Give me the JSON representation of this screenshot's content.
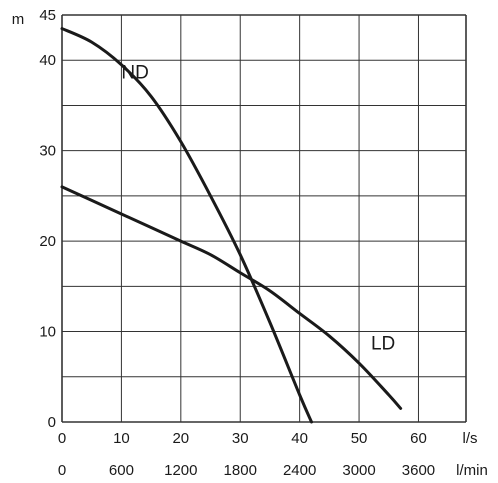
{
  "chart_data": {
    "type": "line",
    "y_unit": "m",
    "x_unit_primary": "l/s",
    "x_unit_secondary": "l/min",
    "ylim": [
      0,
      45
    ],
    "xlim": [
      0,
      68
    ],
    "y_ticks": [
      0,
      10,
      20,
      30,
      40,
      45
    ],
    "x_ticks_primary": [
      0,
      10,
      20,
      30,
      40,
      50,
      60
    ],
    "x_ticks_secondary": [
      0,
      600,
      1200,
      1800,
      2400,
      3000,
      3600
    ],
    "grid": true,
    "series": [
      {
        "name": "ND",
        "color": "#1a1a1a",
        "x": [
          0,
          5,
          10,
          15,
          20,
          25,
          30,
          35,
          40,
          42
        ],
        "y": [
          43.5,
          42,
          39.5,
          36,
          31,
          25,
          18.5,
          11,
          3,
          0
        ]
      },
      {
        "name": "LD",
        "color": "#1a1a1a",
        "x": [
          0,
          5,
          10,
          15,
          20,
          25,
          30,
          35,
          40,
          45,
          50,
          55,
          57
        ],
        "y": [
          26,
          24.5,
          23,
          21.5,
          20,
          18.5,
          16.5,
          14.5,
          12,
          9.5,
          6.5,
          3,
          1.5
        ]
      }
    ]
  }
}
